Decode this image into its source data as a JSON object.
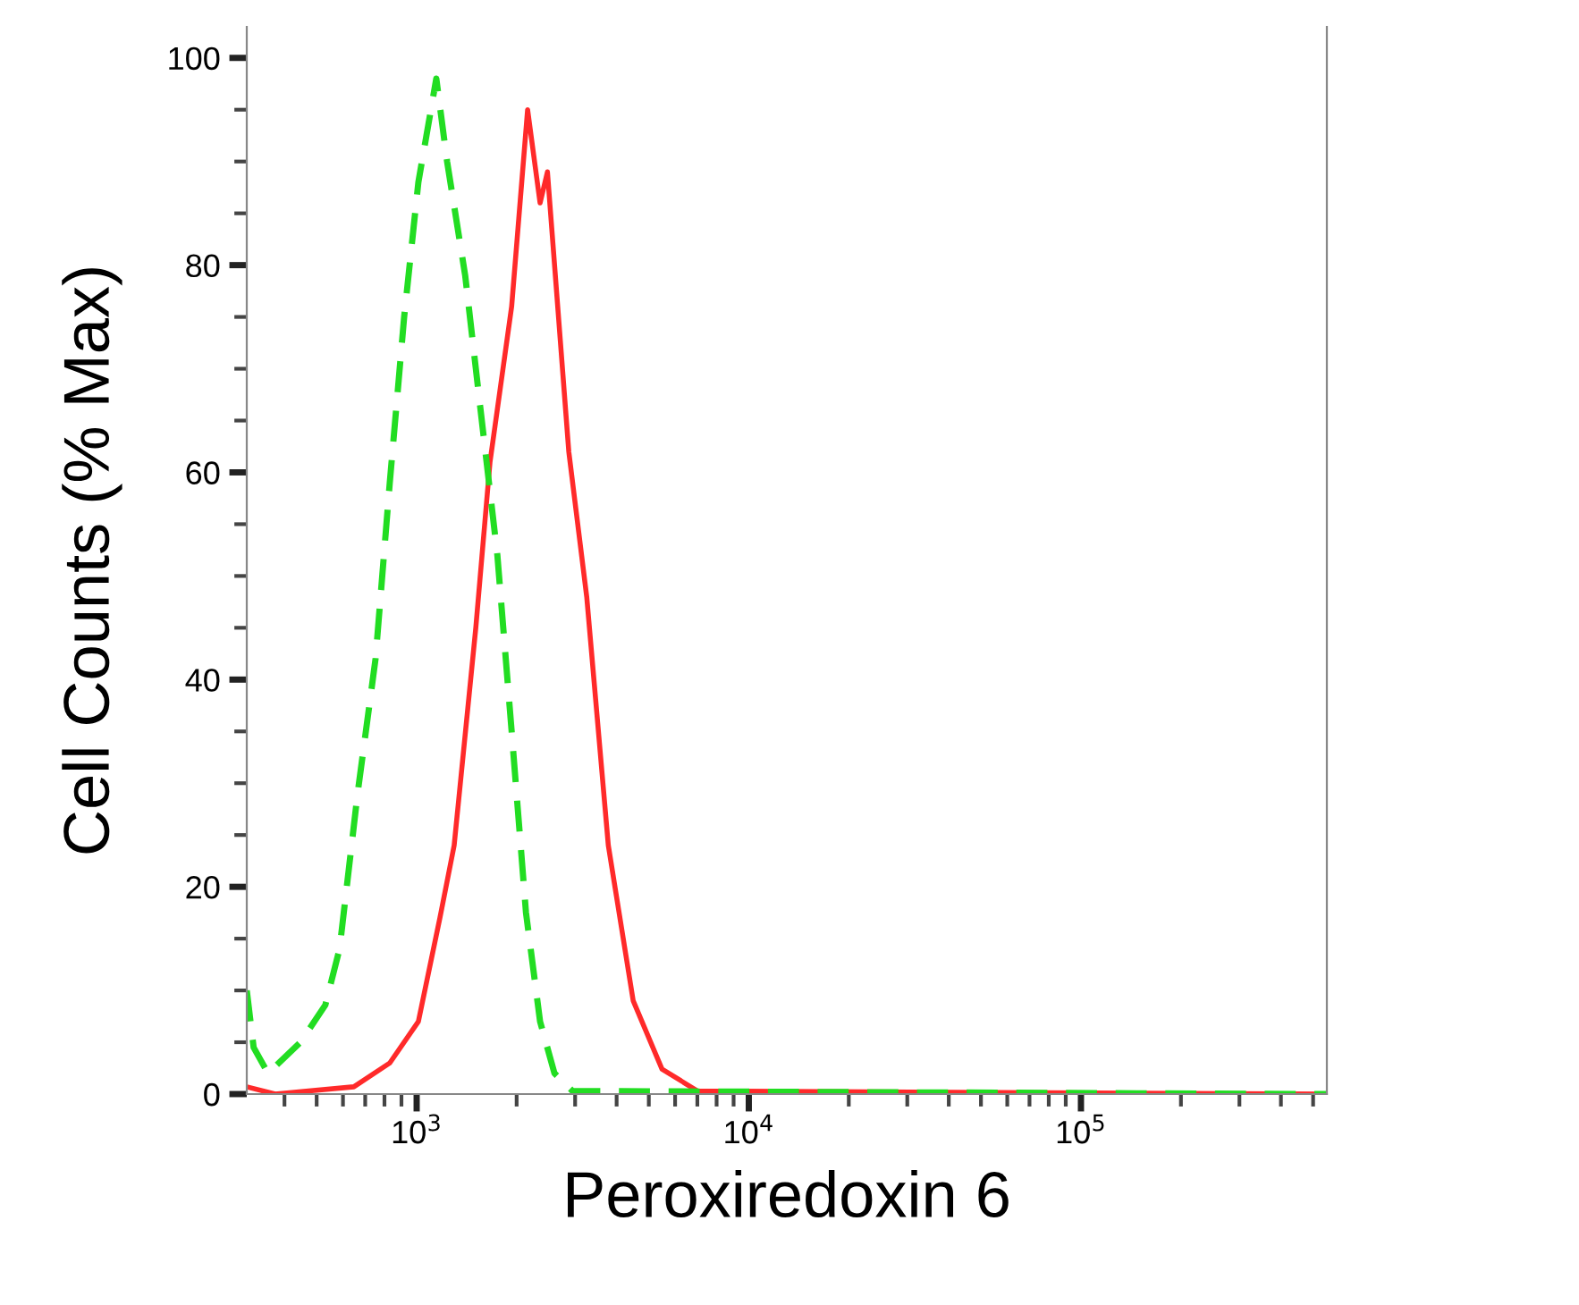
{
  "chart_data": {
    "type": "line",
    "xlabel": "Peroxiredoxin 6",
    "ylabel": "Cell Counts (% Max)",
    "log": "x",
    "xlim": [
      308,
      550000
    ],
    "xticks": [
      {
        "value": 1000,
        "label": "10$^{3}$"
      },
      {
        "value": 10000,
        "label": "10$^{4}$"
      },
      {
        "value": 100000,
        "label": "10$^{5}$"
      }
    ],
    "ylim": [
      0,
      103
    ],
    "yticks": [
      0,
      20,
      40,
      60,
      80,
      100
    ],
    "grid": false,
    "legend": false,
    "series": [
      {
        "color": "#ff2a2a",
        "line_style": "solid",
        "x": [
          308,
          375,
          647,
          830,
          1012,
          1175,
          1297,
          1507,
          1663,
          1932,
          2158,
          2353,
          2476,
          2871,
          3251,
          3776,
          4487,
          5479,
          7011,
          550000
        ],
        "values": [
          0.7,
          0,
          0.7,
          3,
          7,
          17,
          24,
          45,
          61,
          76,
          95,
          86,
          89,
          62,
          48,
          24,
          9,
          2.4,
          0.3,
          0
        ]
      },
      {
        "color": "#22dd22",
        "line_style": "dashed",
        "x": [
          308,
          323,
          357,
          447,
          531,
          586,
          664,
          752,
          830,
          917,
          1012,
          1146,
          1235,
          1400,
          1545,
          1750,
          1932,
          2134,
          2353,
          2600,
          2943,
          550000
        ],
        "values": [
          10,
          4.5,
          2,
          5,
          8.6,
          14,
          29,
          42,
          59,
          75,
          88,
          98,
          90,
          79,
          67,
          52,
          35,
          17.5,
          7,
          2,
          0.3,
          0
        ]
      }
    ]
  }
}
